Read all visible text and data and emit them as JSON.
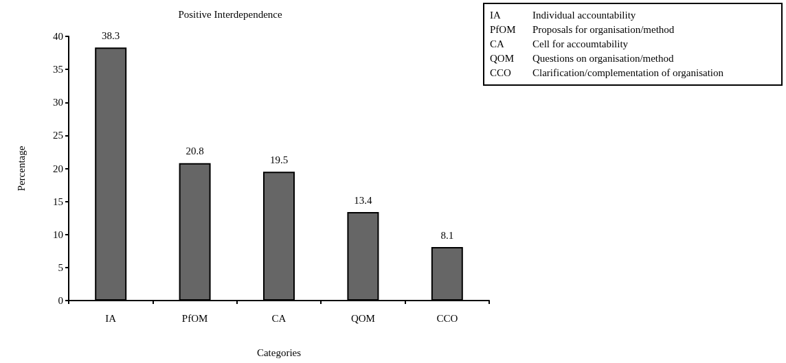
{
  "chart_data": {
    "type": "bar",
    "title": "Positive Interdependence",
    "xlabel": "Categories",
    "ylabel": "Percentage",
    "categories": [
      "IA",
      "PfOM",
      "CA",
      "QOM",
      "CCO"
    ],
    "values": [
      38.3,
      20.8,
      19.5,
      13.4,
      8.1
    ],
    "color": "#666666",
    "ylim": [
      0,
      40
    ],
    "yticks": [
      0,
      5,
      10,
      15,
      20,
      25,
      30,
      35,
      40
    ],
    "grid": false,
    "data_labels": true,
    "annotations": [
      "IA Individual accountability",
      "PfOM Proposals for organisation/method",
      "CA Cell for accoumtability",
      "QOM Questions on organisation/method",
      "CCO Clarification/complementation of organisation"
    ]
  }
}
